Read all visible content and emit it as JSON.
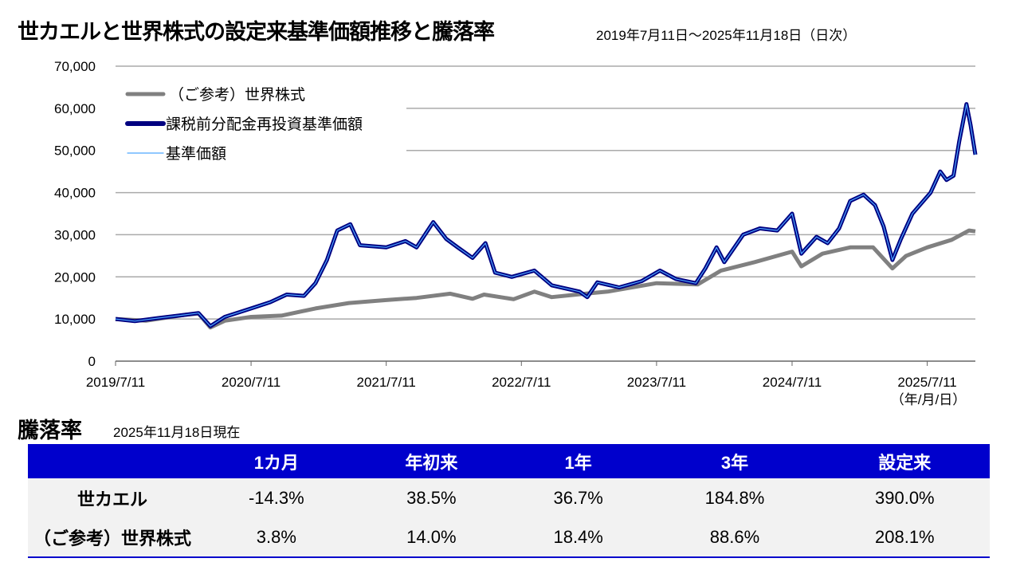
{
  "header": {
    "title": "世カエルと世界株式の設定来基準価額推移と騰落率",
    "period": "2019年7月11日～2025年11月18日（日次）"
  },
  "chart_data": {
    "type": "line",
    "title": "世カエルと世界株式の設定来基準価額推移と騰落率",
    "xlabel": "（年/月/日）",
    "ylabel": "",
    "ylim": [
      0,
      70000
    ],
    "yticks": [
      0,
      10000,
      20000,
      30000,
      40000,
      50000,
      60000,
      70000
    ],
    "ytick_labels": [
      "0",
      "10,000",
      "20,000",
      "30,000",
      "40,000",
      "50,000",
      "60,000",
      "70,000"
    ],
    "xticks": [
      "2019/7/11",
      "2020/7/11",
      "2021/7/11",
      "2022/7/11",
      "2023/7/11",
      "2024/7/11",
      "2025/7/11"
    ],
    "xlim": [
      "2019/7/11",
      "2025/11/18"
    ],
    "grid": true,
    "legend": "top-left",
    "series": [
      {
        "name": "（ご参考）世界株式",
        "color": "#808080",
        "points": [
          [
            "2019-07-11",
            10000
          ],
          [
            "2019-10-01",
            9600
          ],
          [
            "2020-01-15",
            11000
          ],
          [
            "2020-02-20",
            11300
          ],
          [
            "2020-03-23",
            8000
          ],
          [
            "2020-05-01",
            9600
          ],
          [
            "2020-07-11",
            10500
          ],
          [
            "2020-10-01",
            10800
          ],
          [
            "2021-01-01",
            12500
          ],
          [
            "2021-04-01",
            13800
          ],
          [
            "2021-07-11",
            14500
          ],
          [
            "2021-10-01",
            15000
          ],
          [
            "2021-12-31",
            16000
          ],
          [
            "2022-03-01",
            14800
          ],
          [
            "2022-04-01",
            15800
          ],
          [
            "2022-06-20",
            14700
          ],
          [
            "2022-08-15",
            16500
          ],
          [
            "2022-10-01",
            15200
          ],
          [
            "2022-12-31",
            16000
          ],
          [
            "2023-03-01",
            16500
          ],
          [
            "2023-07-11",
            18500
          ],
          [
            "2023-10-30",
            18200
          ],
          [
            "2024-01-01",
            21500
          ],
          [
            "2024-04-01",
            23500
          ],
          [
            "2024-07-11",
            26000
          ],
          [
            "2024-08-05",
            22500
          ],
          [
            "2024-10-01",
            25500
          ],
          [
            "2024-12-15",
            27000
          ],
          [
            "2025-02-15",
            27000
          ],
          [
            "2025-04-08",
            22000
          ],
          [
            "2025-05-15",
            25000
          ],
          [
            "2025-07-11",
            27000
          ],
          [
            "2025-09-15",
            28800
          ],
          [
            "2025-11-01",
            31000
          ],
          [
            "2025-11-18",
            30800
          ]
        ]
      },
      {
        "name": "課税前分配金再投資基準価額",
        "color": "#000080",
        "points": [
          [
            "2019-07-11",
            10000
          ],
          [
            "2019-09-01",
            9500
          ],
          [
            "2019-11-01",
            10200
          ],
          [
            "2020-01-15",
            11000
          ],
          [
            "2020-02-20",
            11400
          ],
          [
            "2020-03-23",
            8300
          ],
          [
            "2020-05-01",
            10500
          ],
          [
            "2020-07-11",
            12500
          ],
          [
            "2020-09-01",
            14000
          ],
          [
            "2020-10-15",
            15800
          ],
          [
            "2020-12-01",
            15500
          ],
          [
            "2021-01-01",
            18500
          ],
          [
            "2021-02-01",
            24000
          ],
          [
            "2021-03-01",
            31000
          ],
          [
            "2021-04-05",
            32500
          ],
          [
            "2021-05-01",
            27500
          ],
          [
            "2021-07-11",
            27000
          ],
          [
            "2021-09-01",
            28500
          ],
          [
            "2021-10-01",
            27000
          ],
          [
            "2021-11-15",
            33000
          ],
          [
            "2021-12-20",
            29000
          ],
          [
            "2022-01-20",
            27000
          ],
          [
            "2022-03-01",
            24500
          ],
          [
            "2022-04-05",
            28000
          ],
          [
            "2022-05-01",
            21000
          ],
          [
            "2022-06-15",
            20000
          ],
          [
            "2022-08-15",
            21500
          ],
          [
            "2022-10-01",
            18000
          ],
          [
            "2022-12-15",
            16500
          ],
          [
            "2023-01-05",
            15200
          ],
          [
            "2023-02-01",
            18700
          ],
          [
            "2023-04-01",
            17500
          ],
          [
            "2023-06-01",
            19000
          ],
          [
            "2023-07-20",
            21500
          ],
          [
            "2023-09-01",
            19500
          ],
          [
            "2023-10-25",
            18500
          ],
          [
            "2023-11-20",
            22000
          ],
          [
            "2023-12-20",
            27000
          ],
          [
            "2024-01-10",
            23500
          ],
          [
            "2024-03-01",
            30000
          ],
          [
            "2024-04-15",
            31500
          ],
          [
            "2024-06-01",
            31000
          ],
          [
            "2024-07-11",
            35000
          ],
          [
            "2024-08-05",
            25500
          ],
          [
            "2024-09-15",
            29500
          ],
          [
            "2024-10-15",
            28000
          ],
          [
            "2024-11-15",
            31500
          ],
          [
            "2024-12-15",
            38000
          ],
          [
            "2025-01-20",
            39500
          ],
          [
            "2025-02-20",
            37000
          ],
          [
            "2025-03-15",
            32000
          ],
          [
            "2025-04-08",
            24000
          ],
          [
            "2025-05-01",
            29000
          ],
          [
            "2025-06-01",
            35000
          ],
          [
            "2025-07-20",
            40000
          ],
          [
            "2025-08-15",
            45000
          ],
          [
            "2025-09-01",
            43000
          ],
          [
            "2025-09-20",
            44000
          ],
          [
            "2025-10-05",
            52000
          ],
          [
            "2025-10-25",
            61000
          ],
          [
            "2025-11-05",
            56000
          ],
          [
            "2025-11-18",
            49000
          ]
        ]
      },
      {
        "name": "基準価額",
        "color": "#4da6ff",
        "same_as": "課税前分配金再投資基準価額"
      }
    ]
  },
  "returns": {
    "title": "騰落率",
    "as_of": "2025年11月18日現在",
    "columns": [
      "",
      "1カ月",
      "年初来",
      "1年",
      "3年",
      "設定来"
    ],
    "rows": [
      {
        "label": "世カエル",
        "values": [
          "-14.3%",
          "38.5%",
          "36.7%",
          "184.8%",
          "390.0%"
        ]
      },
      {
        "label": "（ご参考）世界株式",
        "values": [
          "3.8%",
          "14.0%",
          "18.4%",
          "88.6%",
          "208.1%"
        ]
      }
    ]
  }
}
